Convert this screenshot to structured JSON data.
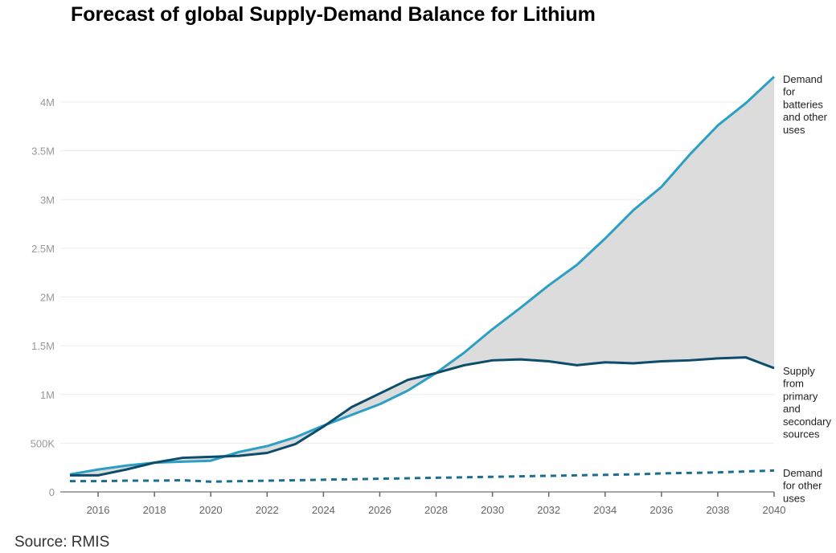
{
  "chart_data": {
    "type": "line",
    "title": "Forecast of global Supply-Demand Balance for Lithium",
    "source": "Source: RMIS",
    "x": [
      2015,
      2016,
      2017,
      2018,
      2019,
      2020,
      2021,
      2022,
      2023,
      2024,
      2025,
      2026,
      2027,
      2028,
      2029,
      2030,
      2031,
      2032,
      2033,
      2034,
      2035,
      2036,
      2037,
      2038,
      2039,
      2040
    ],
    "xlim": [
      2015,
      2040
    ],
    "ylim": [
      0,
      4300000
    ],
    "x_ticks": [
      "2016",
      "2018",
      "2020",
      "2022",
      "2024",
      "2026",
      "2028",
      "2030",
      "2032",
      "2034",
      "2036",
      "2038",
      "2040"
    ],
    "y_ticks": [
      {
        "value": 0,
        "label": "0"
      },
      {
        "value": 500000,
        "label": "500K"
      },
      {
        "value": 1000000,
        "label": "1M"
      },
      {
        "value": 1500000,
        "label": "1.5M"
      },
      {
        "value": 2000000,
        "label": "2M"
      },
      {
        "value": 2500000,
        "label": "2.5M"
      },
      {
        "value": 3000000,
        "label": "3M"
      },
      {
        "value": 3500000,
        "label": "3.5M"
      },
      {
        "value": 4000000,
        "label": "4M"
      }
    ],
    "grid": true,
    "shaded_gap": {
      "between": [
        "Demand for batteries and other uses",
        "Supply from primary and secondary sources"
      ],
      "color": "#dcdcdc"
    },
    "series": [
      {
        "name": "Demand for batteries and other uses",
        "label_lines": [
          "Demand",
          "for",
          "batteries",
          "and other",
          "uses"
        ],
        "color": "#2b9fc4",
        "style": "solid",
        "values": [
          180000,
          230000,
          270000,
          300000,
          310000,
          320000,
          410000,
          470000,
          560000,
          680000,
          790000,
          900000,
          1040000,
          1220000,
          1430000,
          1670000,
          1890000,
          2120000,
          2330000,
          2600000,
          2890000,
          3130000,
          3460000,
          3760000,
          3990000,
          4260000
        ]
      },
      {
        "name": "Supply from primary and secondary sources",
        "label_lines": [
          "Supply",
          "from",
          "primary",
          "and",
          "secondary",
          "sources"
        ],
        "color": "#0d4d6b",
        "style": "solid",
        "values": [
          170000,
          170000,
          230000,
          300000,
          350000,
          360000,
          370000,
          400000,
          490000,
          670000,
          870000,
          1010000,
          1150000,
          1220000,
          1300000,
          1350000,
          1360000,
          1340000,
          1300000,
          1330000,
          1320000,
          1340000,
          1350000,
          1370000,
          1380000,
          1270000
        ]
      },
      {
        "name": "Demand for other uses",
        "label_lines": [
          "Demand",
          "for other",
          "uses"
        ],
        "color": "#1b6e8f",
        "style": "dashed",
        "values": [
          110000,
          110000,
          115000,
          115000,
          120000,
          105000,
          110000,
          115000,
          120000,
          125000,
          130000,
          135000,
          140000,
          145000,
          150000,
          155000,
          160000,
          165000,
          170000,
          175000,
          180000,
          190000,
          195000,
          200000,
          210000,
          220000
        ]
      }
    ]
  }
}
